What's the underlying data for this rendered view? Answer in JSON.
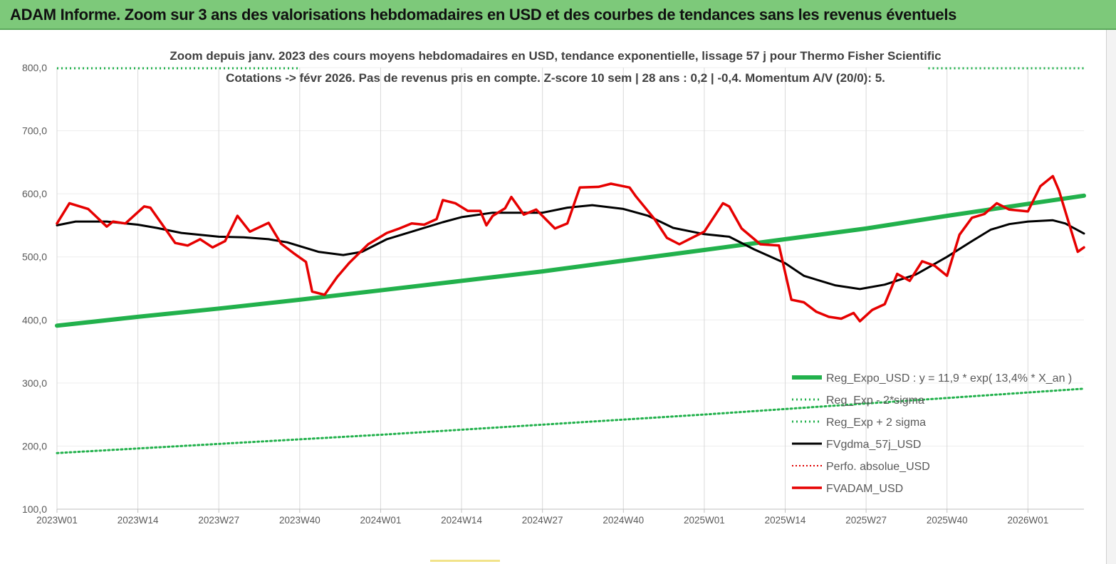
{
  "banner": {
    "title": "ADAM Informe. Zoom sur 3 ans des valorisations hebdomadaires en USD et des courbes de tendances sans les revenus éventuels"
  },
  "colors": {
    "banner_bg": "#7dc97a",
    "reg_expo": "#22b14c",
    "bands": "#22b14c",
    "fvgdma": "#000000",
    "perfo": "#e00000",
    "fvadam": "#e60000",
    "axis_text": "#595959",
    "title_text": "#404040",
    "grid": "#d9d9d9"
  },
  "chart_data": {
    "type": "line",
    "title": "Zoom depuis janv. 2023 des cours moyens hebdomadaires en USD, tendance exponentielle, lissage 57 j pour Thermo Fisher Scientific",
    "subtitle": "Cotations -> févr 2026. Pas de revenus pris en compte. Z-score 10 sem  | 28 ans : 0,2 | -0,4. Momentum A/V (20/0): 5.",
    "xlabel": "",
    "ylabel": "",
    "ylim": [
      100,
      800
    ],
    "y_ticks": [
      "100,0",
      "200,0",
      "300,0",
      "400,0",
      "500,0",
      "600,0",
      "700,0",
      "800,0"
    ],
    "x_tick_labels": [
      "2023W01",
      "2023W14",
      "2023W27",
      "2023W40",
      "2024W01",
      "2024W14",
      "2024W27",
      "2024W40",
      "2025W01",
      "2025W14",
      "2025W27",
      "2025W40",
      "2026W01"
    ],
    "x_tick_index": [
      0,
      13,
      26,
      39,
      52,
      65,
      78,
      91,
      104,
      117,
      130,
      143,
      156
    ],
    "x_count": 166,
    "grid": "vertical",
    "legend_position": "bottom-right",
    "series": [
      {
        "name": "Reg_Expo_USD : y = 11,9 * exp( 13,4% *  X_an )",
        "style": "solid-thick",
        "values_at": [
          [
            0,
            391
          ],
          [
            13,
            405
          ],
          [
            26,
            418
          ],
          [
            39,
            432
          ],
          [
            52,
            447
          ],
          [
            65,
            462
          ],
          [
            78,
            477
          ],
          [
            91,
            494
          ],
          [
            104,
            511
          ],
          [
            117,
            528
          ],
          [
            130,
            545
          ],
          [
            143,
            565
          ],
          [
            156,
            584
          ],
          [
            165,
            597
          ]
        ]
      },
      {
        "name": "Reg_Exp - 2*sigma",
        "style": "dotted",
        "values_at": [
          [
            0,
            189
          ],
          [
            52,
            218
          ],
          [
            104,
            250
          ],
          [
            165,
            291
          ]
        ]
      },
      {
        "name": "Reg_Exp + 2 sigma",
        "style": "dotted",
        "values_at": [
          [
            0,
            799
          ],
          [
            165,
            799
          ]
        ],
        "note_visible_segments": "only visible near edges"
      },
      {
        "name": "FVgdma_57j_USD",
        "style": "solid",
        "values_at": [
          [
            0,
            550
          ],
          [
            3,
            556
          ],
          [
            8,
            556
          ],
          [
            13,
            551
          ],
          [
            16,
            546
          ],
          [
            20,
            538
          ],
          [
            26,
            532
          ],
          [
            30,
            531
          ],
          [
            34,
            528
          ],
          [
            37,
            523
          ],
          [
            42,
            508
          ],
          [
            46,
            503
          ],
          [
            49,
            508
          ],
          [
            53,
            528
          ],
          [
            57,
            540
          ],
          [
            62,
            555
          ],
          [
            65,
            563
          ],
          [
            70,
            570
          ],
          [
            78,
            570
          ],
          [
            82,
            578
          ],
          [
            86,
            582
          ],
          [
            91,
            576
          ],
          [
            95,
            565
          ],
          [
            99,
            546
          ],
          [
            104,
            536
          ],
          [
            108,
            532
          ],
          [
            112,
            512
          ],
          [
            117,
            490
          ],
          [
            120,
            470
          ],
          [
            125,
            455
          ],
          [
            129,
            449
          ],
          [
            133,
            456
          ],
          [
            138,
            472
          ],
          [
            143,
            500
          ],
          [
            147,
            525
          ],
          [
            150,
            543
          ],
          [
            153,
            552
          ],
          [
            156,
            556
          ],
          [
            160,
            558
          ],
          [
            162,
            553
          ],
          [
            165,
            537
          ]
        ]
      },
      {
        "name": "Perfo. absolue_USD",
        "style": "dotted",
        "values_at": []
      },
      {
        "name": "FVADAM_USD",
        "style": "solid-thick",
        "values_at": [
          [
            0,
            553
          ],
          [
            2,
            585
          ],
          [
            5,
            576
          ],
          [
            8,
            548
          ],
          [
            9,
            556
          ],
          [
            11,
            553
          ],
          [
            14,
            580
          ],
          [
            15,
            578
          ],
          [
            17,
            550
          ],
          [
            19,
            522
          ],
          [
            21,
            518
          ],
          [
            23,
            528
          ],
          [
            25,
            515
          ],
          [
            27,
            525
          ],
          [
            29,
            565
          ],
          [
            31,
            540
          ],
          [
            34,
            554
          ],
          [
            36,
            521
          ],
          [
            38,
            506
          ],
          [
            40,
            492
          ],
          [
            41,
            445
          ],
          [
            43,
            440
          ],
          [
            45,
            468
          ],
          [
            47,
            491
          ],
          [
            50,
            520
          ],
          [
            53,
            538
          ],
          [
            55,
            545
          ],
          [
            57,
            553
          ],
          [
            59,
            551
          ],
          [
            61,
            560
          ],
          [
            62,
            590
          ],
          [
            64,
            585
          ],
          [
            66,
            573
          ],
          [
            68,
            573
          ],
          [
            69,
            550
          ],
          [
            70,
            565
          ],
          [
            72,
            577
          ],
          [
            73,
            595
          ],
          [
            75,
            567
          ],
          [
            77,
            575
          ],
          [
            80,
            545
          ],
          [
            82,
            553
          ],
          [
            84,
            610
          ],
          [
            87,
            611
          ],
          [
            89,
            616
          ],
          [
            92,
            610
          ],
          [
            93,
            596
          ],
          [
            96,
            560
          ],
          [
            98,
            530
          ],
          [
            100,
            520
          ],
          [
            102,
            530
          ],
          [
            104,
            540
          ],
          [
            106,
            570
          ],
          [
            107,
            585
          ],
          [
            108,
            580
          ],
          [
            110,
            545
          ],
          [
            113,
            520
          ],
          [
            116,
            518
          ],
          [
            118,
            432
          ],
          [
            120,
            428
          ],
          [
            122,
            413
          ],
          [
            124,
            405
          ],
          [
            126,
            402
          ],
          [
            128,
            411
          ],
          [
            129,
            398
          ],
          [
            131,
            416
          ],
          [
            133,
            425
          ],
          [
            135,
            473
          ],
          [
            137,
            462
          ],
          [
            139,
            493
          ],
          [
            141,
            486
          ],
          [
            143,
            470
          ],
          [
            145,
            535
          ],
          [
            147,
            562
          ],
          [
            149,
            568
          ],
          [
            151,
            585
          ],
          [
            153,
            575
          ],
          [
            156,
            572
          ],
          [
            158,
            612
          ],
          [
            160,
            628
          ],
          [
            161,
            605
          ],
          [
            163,
            540
          ],
          [
            164,
            508
          ],
          [
            165,
            515
          ]
        ]
      }
    ]
  }
}
